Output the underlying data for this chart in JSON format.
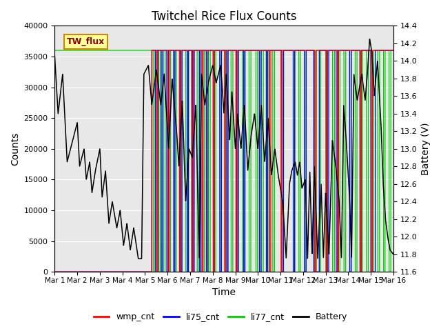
{
  "title": "Twitchel Rice Flux Counts",
  "xlabel": "Time",
  "ylabel_left": "Counts",
  "ylabel_right": "Battery (V)",
  "legend_label": "TW_flux",
  "series_labels": [
    "wmp_cnt",
    "li75_cnt",
    "li77_cnt",
    "Battery"
  ],
  "colors": {
    "wmp_cnt": "#ff0000",
    "li75_cnt": "#0000ff",
    "li77_cnt": "#00cc00",
    "Battery": "#000000"
  },
  "ylim_left": [
    0,
    40000
  ],
  "ylim_right": [
    11.6,
    14.4
  ],
  "xlim": [
    0,
    15
  ],
  "xtick_labels": [
    "Mar 1",
    "Mar 2",
    "Mar 3",
    "Mar 4",
    "Mar 5",
    "Mar 6",
    "Mar 7",
    "Mar 8",
    "Mar 9",
    "Mar 10",
    "Mar 11",
    "Mar 12",
    "Mar 13",
    "Mar 14",
    "Mar 15",
    "Mar 16"
  ],
  "xtick_positions": [
    0,
    1,
    2,
    3,
    4,
    5,
    6,
    7,
    8,
    9,
    10,
    11,
    12,
    13,
    14,
    15
  ],
  "yticks_left": [
    0,
    5000,
    10000,
    15000,
    20000,
    25000,
    30000,
    35000,
    40000
  ],
  "yticks_right": [
    11.6,
    11.8,
    12.0,
    12.2,
    12.4,
    12.6,
    12.8,
    13.0,
    13.2,
    13.4,
    13.6,
    13.8,
    14.0,
    14.2,
    14.4
  ],
  "background_color": "#e8e8e8",
  "plot_bg_top": "#d8d8d8",
  "legend_box_color": "#ffff99",
  "legend_box_edge": "#cc8800",
  "count_level": 36000
}
